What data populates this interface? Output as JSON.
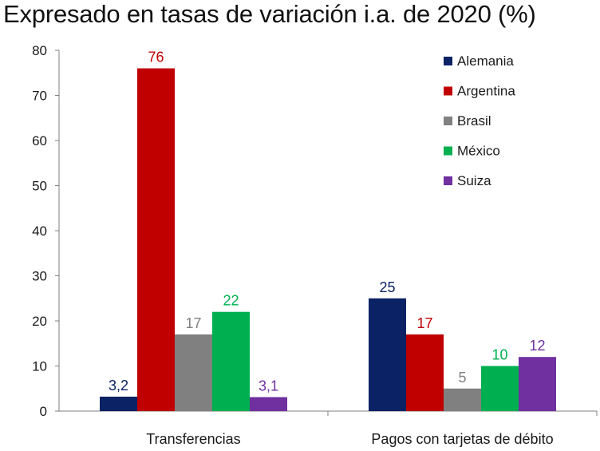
{
  "chart_data": {
    "type": "bar",
    "title": "Expresado en tasas de variación i.a. de 2020 (%)",
    "xlabel": "",
    "ylabel": "",
    "ylim": [
      0,
      80
    ],
    "yticks": [
      0,
      10,
      20,
      30,
      40,
      50,
      60,
      70,
      80
    ],
    "grid": false,
    "legend_position": "top-right",
    "categories": [
      "Transferencias",
      "Pagos con tarjetas de débito"
    ],
    "series": [
      {
        "name": "Alemania",
        "color": "#0b2265",
        "values": [
          3.2,
          25
        ],
        "labels": [
          "3,2",
          "25"
        ]
      },
      {
        "name": "Argentina",
        "color": "#c00000",
        "values": [
          76,
          17
        ],
        "labels": [
          "76",
          "17"
        ]
      },
      {
        "name": "Brasil",
        "color": "#808080",
        "values": [
          17,
          5
        ],
        "labels": [
          "17",
          "5"
        ]
      },
      {
        "name": "México",
        "color": "#00b050",
        "values": [
          22,
          10
        ],
        "labels": [
          "22",
          "10"
        ]
      },
      {
        "name": "Suiza",
        "color": "#7030a0",
        "values": [
          3.1,
          12
        ],
        "labels": [
          "3,1",
          "12"
        ]
      }
    ]
  }
}
